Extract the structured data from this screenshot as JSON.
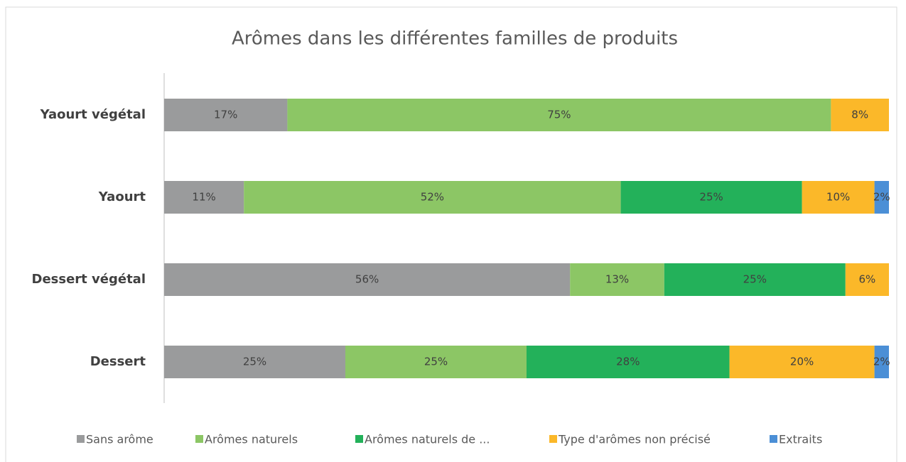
{
  "chart_data": {
    "type": "stacked-bar-horizontal",
    "title": "Arômes dans les différentes familles de produits",
    "categories": [
      "Yaourt végétal",
      "Yaourt",
      "Dessert végétal",
      "Dessert"
    ],
    "xlim": [
      0,
      100
    ],
    "series": [
      {
        "name": "Sans arôme",
        "color": "#9a9b9c",
        "values": [
          17,
          11,
          56,
          25
        ],
        "value_labels": [
          "17%",
          "11%",
          "56%",
          "25%"
        ]
      },
      {
        "name": "Arômes naturels",
        "color": "#8cc665",
        "values": [
          75,
          52,
          13,
          25
        ],
        "value_labels": [
          "75%",
          "52%",
          "13%",
          "25%"
        ]
      },
      {
        "name": "Arômes naturels de ...",
        "color": "#23b15a",
        "values": [
          null,
          25,
          25,
          28
        ],
        "value_labels": [
          null,
          "25%",
          "25%",
          "28%"
        ]
      },
      {
        "name": "Type d'arômes non précisé",
        "color": "#fbb829",
        "values": [
          8,
          10,
          6,
          20
        ],
        "value_labels": [
          "8%",
          "10%",
          "6%",
          "20%"
        ]
      },
      {
        "name": "Extraits",
        "color": "#4b8fd6",
        "values": [
          null,
          2,
          null,
          2
        ],
        "value_labels": [
          null,
          "2%",
          null,
          "2%"
        ]
      }
    ]
  }
}
